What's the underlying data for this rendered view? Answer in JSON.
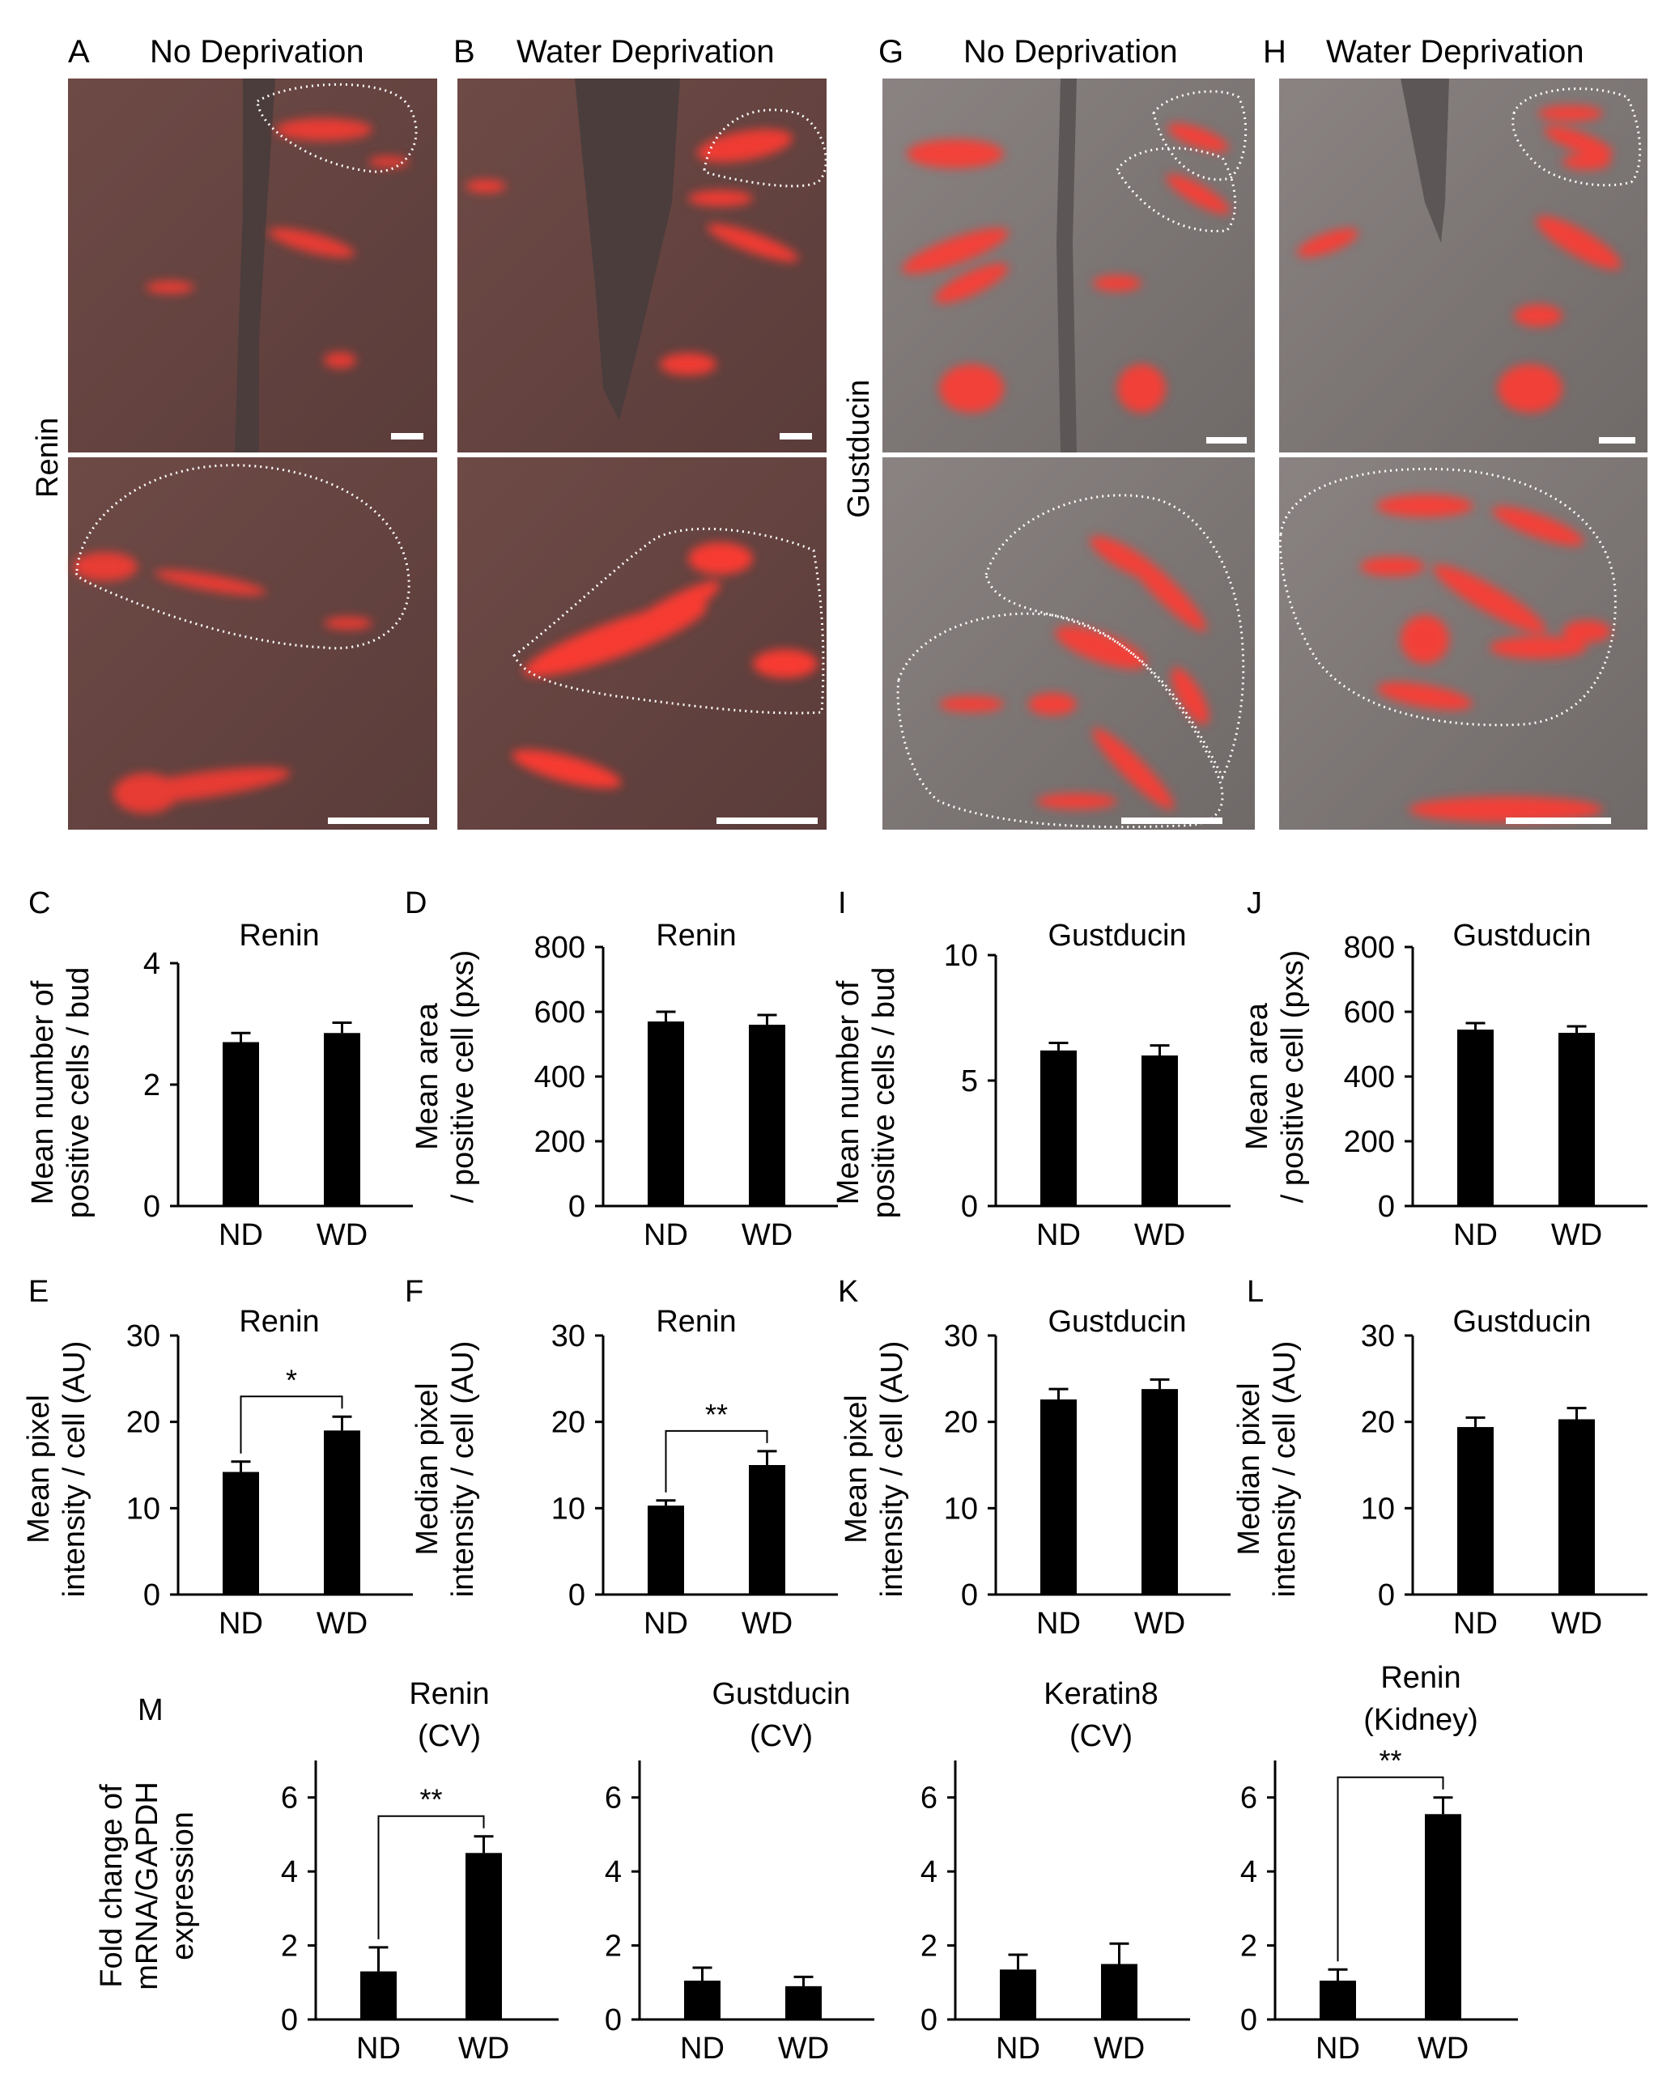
{
  "figure": {
    "micrographs": {
      "A": {
        "letter": "A",
        "title": "No Deprivation"
      },
      "B": {
        "letter": "B",
        "title": "Water Deprivation"
      },
      "G": {
        "letter": "G",
        "title": "No Deprivation"
      },
      "H": {
        "letter": "H",
        "title": "Water Deprivation"
      },
      "row_label_left": "Renin",
      "row_label_right": "Gustducin"
    },
    "colors": {
      "fluorescence": "#ff3b30",
      "tissue_background": "#6a4a46",
      "gustducin_background": "#7a7372",
      "bar_fill": "#000000"
    }
  },
  "chart_data": [
    {
      "panel": "C",
      "type": "bar",
      "title": "Renin",
      "ylabel": [
        "Mean number of",
        "positive cells / bud"
      ],
      "categories": [
        "ND",
        "WD"
      ],
      "values": [
        2.7,
        2.85
      ],
      "errors": [
        0.15,
        0.17
      ],
      "ylim": [
        0,
        4
      ],
      "yticks": [
        0,
        2,
        4
      ]
    },
    {
      "panel": "D",
      "type": "bar",
      "title": "Renin",
      "ylabel": [
        "Mean area",
        "/ positive cell (pxs)"
      ],
      "categories": [
        "ND",
        "WD"
      ],
      "values": [
        570,
        560
      ],
      "errors": [
        30,
        30
      ],
      "ylim": [
        0,
        800
      ],
      "yticks": [
        0,
        200,
        400,
        600,
        800
      ]
    },
    {
      "panel": "I",
      "type": "bar",
      "title": "Gustducin",
      "ylabel": [
        "Mean number of",
        "positive cells / bud"
      ],
      "categories": [
        "ND",
        "WD"
      ],
      "values": [
        6.2,
        6.0
      ],
      "errors": [
        0.3,
        0.4
      ],
      "ylim": [
        0,
        10
      ],
      "yticks": [
        0,
        5,
        10
      ]
    },
    {
      "panel": "J",
      "type": "bar",
      "title": "Gustducin",
      "ylabel": [
        "Mean area",
        "/ positive cell (pxs)"
      ],
      "categories": [
        "ND",
        "WD"
      ],
      "values": [
        545,
        535
      ],
      "errors": [
        20,
        20
      ],
      "ylim": [
        0,
        800
      ],
      "yticks": [
        0,
        200,
        400,
        600,
        800
      ]
    },
    {
      "panel": "E",
      "type": "bar",
      "title": "Renin",
      "ylabel": [
        "Mean pixel",
        "intensity / cell (AU)"
      ],
      "categories": [
        "ND",
        "WD"
      ],
      "values": [
        14.2,
        19.0
      ],
      "errors": [
        1.2,
        1.6
      ],
      "ylim": [
        0,
        30
      ],
      "yticks": [
        0,
        10,
        20,
        30
      ],
      "significance": "*"
    },
    {
      "panel": "F",
      "type": "bar",
      "title": "Renin",
      "ylabel": [
        "Median pixel",
        "intensity / cell (AU)"
      ],
      "categories": [
        "ND",
        "WD"
      ],
      "values": [
        10.3,
        15.0
      ],
      "errors": [
        0.6,
        1.6
      ],
      "ylim": [
        0,
        30
      ],
      "yticks": [
        0,
        10,
        20,
        30
      ],
      "significance": "**"
    },
    {
      "panel": "K",
      "type": "bar",
      "title": "Gustducin",
      "ylabel": [
        "Mean pixel",
        "intensity / cell (AU)"
      ],
      "categories": [
        "ND",
        "WD"
      ],
      "values": [
        22.6,
        23.8
      ],
      "errors": [
        1.2,
        1.1
      ],
      "ylim": [
        0,
        30
      ],
      "yticks": [
        0,
        10,
        20,
        30
      ]
    },
    {
      "panel": "L",
      "type": "bar",
      "title": "Gustducin",
      "ylabel": [
        "Median pixel",
        "intensity / cell (AU)"
      ],
      "categories": [
        "ND",
        "WD"
      ],
      "values": [
        19.4,
        20.3
      ],
      "errors": [
        1.1,
        1.3
      ],
      "ylim": [
        0,
        30
      ],
      "yticks": [
        0,
        10,
        20,
        30
      ]
    },
    {
      "panel": "M",
      "type": "bar",
      "title": [
        "Renin",
        "(CV)"
      ],
      "ylabel": [
        "Fold change of",
        "mRNA/GAPDH",
        "expression"
      ],
      "categories": [
        "ND",
        "WD"
      ],
      "values": [
        1.3,
        4.5
      ],
      "errors": [
        0.65,
        0.45
      ],
      "ylim": [
        0,
        7
      ],
      "yticks": [
        0,
        2,
        4,
        6
      ],
      "significance": "**"
    },
    {
      "panel": "",
      "type": "bar",
      "title": [
        "Gustducin",
        "(CV)"
      ],
      "categories": [
        "ND",
        "WD"
      ],
      "values": [
        1.05,
        0.9
      ],
      "errors": [
        0.35,
        0.25
      ],
      "ylim": [
        0,
        7
      ],
      "yticks": [
        0,
        2,
        4,
        6
      ]
    },
    {
      "panel": "",
      "type": "bar",
      "title": [
        "Keratin8",
        "(CV)"
      ],
      "categories": [
        "ND",
        "WD"
      ],
      "values": [
        1.35,
        1.5
      ],
      "errors": [
        0.4,
        0.55
      ],
      "ylim": [
        0,
        7
      ],
      "yticks": [
        0,
        2,
        4,
        6
      ]
    },
    {
      "panel": "",
      "type": "bar",
      "title": [
        "Renin",
        "(Kidney)"
      ],
      "categories": [
        "ND",
        "WD"
      ],
      "values": [
        1.05,
        5.55
      ],
      "errors": [
        0.3,
        0.45
      ],
      "ylim": [
        0,
        7
      ],
      "yticks": [
        0,
        2,
        4,
        6
      ],
      "significance": "**"
    }
  ]
}
